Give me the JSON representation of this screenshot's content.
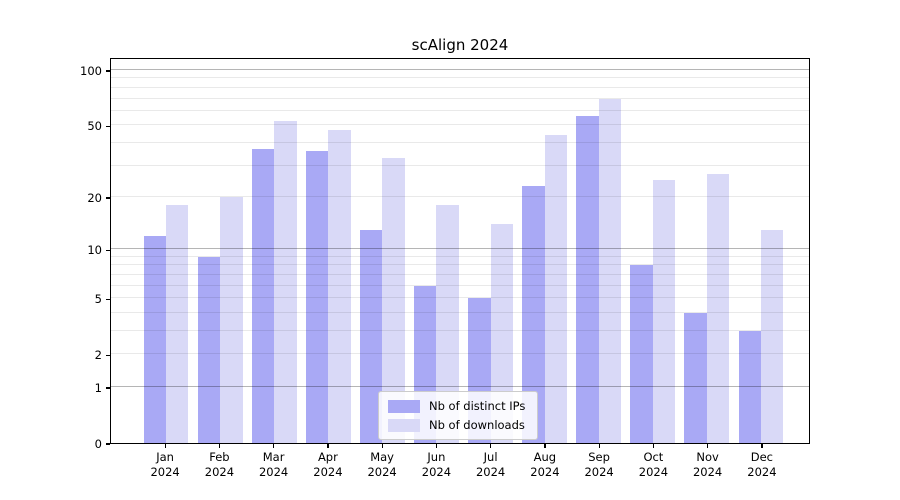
{
  "title": "scAlign 2024",
  "chart_data": {
    "type": "bar",
    "title": "scAlign 2024",
    "categories": [
      "Jan 2024",
      "Feb 2024",
      "Mar 2024",
      "Apr 2024",
      "May 2024",
      "Jun 2024",
      "Jul 2024",
      "Aug 2024",
      "Sep 2024",
      "Oct 2024",
      "Nov 2024",
      "Dec 2024"
    ],
    "series": [
      {
        "name": "Nb of distinct IPs",
        "color": "#a9a9f5",
        "values": [
          12,
          9,
          37,
          36,
          13,
          6,
          5,
          23,
          56,
          8,
          4,
          3
        ]
      },
      {
        "name": "Nb of downloads",
        "color": "#d9d9f7",
        "values": [
          18,
          20,
          53,
          47,
          33,
          18,
          14,
          44,
          70,
          25,
          27,
          13
        ]
      }
    ],
    "xlabel": "",
    "ylabel": "",
    "y_scale": "log1p",
    "y_ticks": [
      100,
      50,
      20,
      10,
      5,
      2,
      1,
      0
    ],
    "y_minor_gridlines": [
      2,
      3,
      4,
      5,
      6,
      7,
      8,
      9,
      20,
      30,
      40,
      50,
      60,
      70,
      80,
      90
    ],
    "y_major_gridlines": [
      1,
      10,
      100
    ],
    "ylim": [
      0,
      118
    ],
    "grid": true,
    "legend_position": "bottom-center"
  },
  "colors": {
    "bar_dark": "#a9a9f5",
    "bar_light": "#d9d9f7",
    "axis": "#000000",
    "grid_major": "#b5b5b5",
    "grid_minor": "#e9e9e9",
    "background": "#ffffff"
  }
}
